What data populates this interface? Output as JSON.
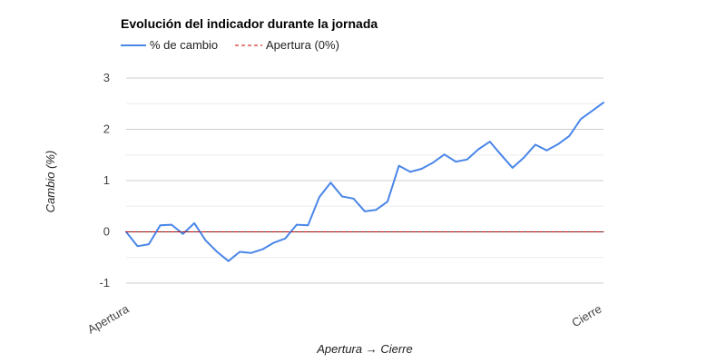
{
  "chart_data": {
    "type": "line",
    "title": "Evolución del indicador durante la jornada",
    "xlabel": "Apertura → Cierre",
    "ylabel": "Cambio (%)",
    "x_tick_labels": [
      "Apertura",
      "Cierre"
    ],
    "ylim": [
      -1,
      3
    ],
    "y_ticks": [
      -1,
      0,
      1,
      2,
      3
    ],
    "grid": true,
    "legend_position": "top-left",
    "series": [
      {
        "name": "% de cambio",
        "color": "#4a86e8",
        "style": "solid",
        "values": [
          0.0,
          -0.28,
          -0.24,
          0.13,
          0.14,
          -0.04,
          0.17,
          -0.17,
          -0.39,
          -0.57,
          -0.39,
          -0.41,
          -0.34,
          -0.21,
          -0.13,
          0.14,
          0.13,
          0.68,
          0.96,
          0.69,
          0.65,
          0.4,
          0.43,
          0.59,
          1.29,
          1.17,
          1.23,
          1.35,
          1.51,
          1.37,
          1.41,
          1.61,
          1.76,
          1.5,
          1.25,
          1.45,
          1.7,
          1.59,
          1.71,
          1.87,
          2.2,
          2.36,
          2.52
        ]
      },
      {
        "name": "Apertura (0%)",
        "color": "#cc0000",
        "style": "dashed",
        "values": [
          0,
          0
        ]
      }
    ]
  }
}
